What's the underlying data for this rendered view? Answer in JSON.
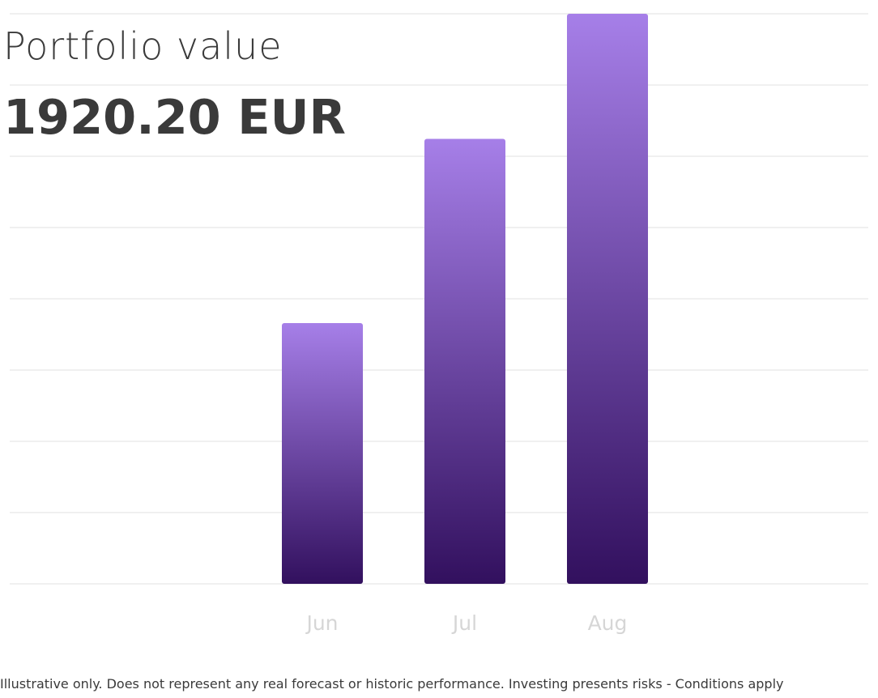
{
  "header": {
    "title": "Portfolio value",
    "value": "1920.20 EUR"
  },
  "chart_data": {
    "type": "bar",
    "categories": [
      "Jun",
      "Jul",
      "Aug"
    ],
    "values": [
      3.75,
      6.4,
      8.2
    ],
    "ylim": [
      0,
      8.2
    ],
    "grid": true,
    "gridlines": 9,
    "title": "",
    "xlabel": "",
    "ylabel": "",
    "colors": {
      "bar_top": "#a67fe8",
      "bar_bottom": "#32105e",
      "grid": "#f0f0f0",
      "tick_label": "#d6d6d6"
    }
  },
  "footer": {
    "disclaimer": "Illustrative only. Does not represent any real forecast or historic performance. Investing presents risks - Conditions apply"
  }
}
